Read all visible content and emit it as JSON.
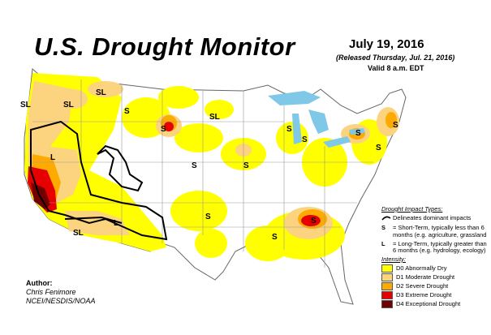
{
  "header": {
    "title": "U.S. Drought Monitor",
    "date": "July 19, 2016",
    "released": "(Released Thursday, Jul. 21, 2016)",
    "valid": "Valid 8 a.m. EDT"
  },
  "map_labels": {
    "sl": "SL",
    "s": "S",
    "l": "L"
  },
  "legend": {
    "impact_header": "Drought Impact Types:",
    "dominant": "Delineates dominant impacts",
    "short_term_symbol": "S",
    "short_term": "= Short-Term, typically less than 6 months (e.g. agriculture, grassland",
    "long_term_symbol": "L",
    "long_term": "= Long-Term, typically greater than 6 months (e.g. hydrology, ecology)",
    "intensity_header": "Intensity:",
    "intensity": [
      {
        "label": "D0 Abnormally Dry",
        "color": "#ffff00"
      },
      {
        "label": "D1 Moderate Drought",
        "color": "#fcd37f"
      },
      {
        "label": "D2 Severe Drought",
        "color": "#ffaa00"
      },
      {
        "label": "D3 Extreme Drought",
        "color": "#e60000"
      },
      {
        "label": "D4 Exceptional Drought",
        "color": "#730000"
      }
    ]
  },
  "author": {
    "label": "Author:",
    "name": "Chris Fenimore",
    "org": "NCEI/NESDIS/NOAA"
  },
  "colors": {
    "water": "#7fc8e8",
    "boundary": "#999999",
    "d0": "#ffff00",
    "d1": "#fcd37f",
    "d2": "#ffaa00",
    "d3": "#e60000",
    "d4": "#730000"
  }
}
